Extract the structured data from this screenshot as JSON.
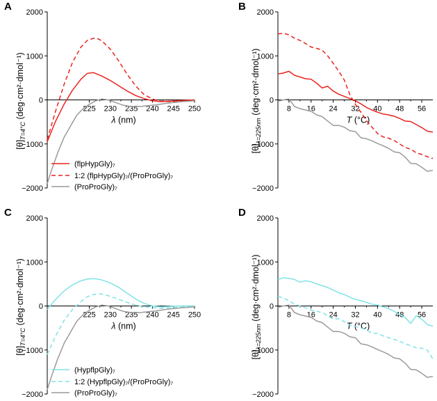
{
  "colors": {
    "red": "#e8231d",
    "cyan": "#7fe3e6",
    "gray": "#9a9a9a",
    "axis": "#000000"
  },
  "chart_data": [
    {
      "panel": "A",
      "type": "line",
      "xlabel_var": "λ",
      "xlabel_unit": " (nm)",
      "ylabel_base": "[θ]",
      "ylabel_sub": "T=4°C",
      "ylabel_unit": " (deg·cm²·dmol⁻¹)",
      "xlim": [
        215,
        250
      ],
      "ylim": [
        -2000,
        2000
      ],
      "xticks": [
        225,
        230,
        235,
        240,
        245,
        250
      ],
      "xtick_labels": [
        "225",
        "230",
        "235",
        "240",
        "245",
        "250"
      ],
      "yticks": [
        2000,
        1000,
        0,
        -1000,
        -2000
      ],
      "ytick_labels": [
        "2000",
        "1000",
        "0",
        "−1000",
        "−2000"
      ],
      "legend_position": "bottom-left",
      "series": [
        {
          "name": "(flpHypGly)₇",
          "color": "red",
          "dash": "solid",
          "x": [
            215,
            217,
            219,
            221,
            223,
            224.5,
            226,
            227,
            228,
            230,
            232,
            234,
            236,
            238,
            240,
            242,
            244,
            246,
            248,
            250
          ],
          "y": [
            -950,
            -480,
            -100,
            220,
            470,
            600,
            620,
            580,
            540,
            440,
            320,
            200,
            100,
            30,
            -20,
            -40,
            -30,
            -20,
            -10,
            0
          ]
        },
        {
          "name": "1:2 (flpHypGly)₇/(ProProGly)₇",
          "color": "red",
          "dash": "dashed",
          "x": [
            215,
            217,
            219,
            221,
            223,
            224.5,
            226,
            227,
            228,
            230,
            232,
            234,
            236,
            238,
            240,
            242,
            244,
            246,
            248,
            250
          ],
          "y": [
            -900,
            -250,
            350,
            850,
            1200,
            1350,
            1400,
            1390,
            1340,
            1150,
            880,
            580,
            320,
            120,
            20,
            -30,
            -40,
            -30,
            -20,
            0
          ]
        },
        {
          "name": "(ProProGly)₇",
          "color": "gray",
          "dash": "solid",
          "x": [
            215,
            216,
            217.5,
            219,
            220.5,
            222,
            223.5,
            225,
            226.5,
            228,
            229.5,
            231,
            233,
            235,
            237,
            239,
            241,
            243,
            245,
            247,
            250
          ],
          "y": [
            -1900,
            -1600,
            -1200,
            -850,
            -600,
            -350,
            -200,
            -100,
            -20,
            20,
            0,
            -50,
            -120,
            -150,
            -150,
            -130,
            -110,
            -80,
            -60,
            -40,
            -20
          ]
        }
      ]
    },
    {
      "panel": "B",
      "type": "line",
      "xlabel_var": "T",
      "xlabel_unit": " (°C)",
      "ylabel_base": "[θ]",
      "ylabel_sub": "λ=225nm",
      "ylabel_unit": " (deg·cm²·dmol⁻¹)",
      "xlim": [
        4,
        60
      ],
      "ylim": [
        -2000,
        2000
      ],
      "xticks": [
        8,
        16,
        24,
        32,
        40,
        48,
        56
      ],
      "xtick_labels": [
        "8",
        "16",
        "24",
        "32",
        "40",
        "48",
        "56"
      ],
      "yticks": [
        2000,
        1000,
        0,
        -1000,
        -2000
      ],
      "ytick_labels": [
        "2000",
        "1000",
        "0",
        "−1000",
        "−2000"
      ],
      "series": [
        {
          "name": "(flpHypGly)₇",
          "color": "red",
          "dash": "solid",
          "x": [
            4,
            6,
            8,
            10,
            12,
            14,
            16,
            18,
            20,
            22,
            24,
            26,
            28,
            30,
            32,
            34,
            36,
            38,
            40,
            42,
            44,
            46,
            48,
            50,
            52,
            54,
            56,
            58,
            60
          ],
          "y": [
            590,
            610,
            650,
            560,
            520,
            480,
            470,
            380,
            270,
            310,
            200,
            130,
            80,
            30,
            -20,
            -90,
            -170,
            -230,
            -280,
            -320,
            -340,
            -370,
            -420,
            -480,
            -490,
            -560,
            -630,
            -710,
            -730
          ]
        },
        {
          "name": "1:2 (flpHypGly)₇/(ProProGly)₇",
          "color": "red",
          "dash": "dashed",
          "x": [
            4,
            6,
            8,
            10,
            12,
            14,
            16,
            18,
            20,
            22,
            24,
            26,
            28,
            30,
            32,
            34,
            36,
            38,
            40,
            42,
            44,
            46,
            48,
            50,
            52,
            54,
            56,
            58,
            60
          ],
          "y": [
            1500,
            1510,
            1480,
            1400,
            1350,
            1280,
            1200,
            1170,
            1130,
            1000,
            830,
            650,
            450,
            120,
            -100,
            -280,
            -470,
            -620,
            -760,
            -840,
            -870,
            -920,
            -1000,
            -1080,
            -1120,
            -1200,
            -1240,
            -1290,
            -1330
          ]
        },
        {
          "name": "(ProProGly)₇",
          "color": "gray",
          "dash": "solid",
          "x": [
            4,
            6,
            8,
            10,
            12,
            14,
            16,
            18,
            20,
            22,
            24,
            26,
            28,
            30,
            32,
            34,
            36,
            38,
            40,
            42,
            44,
            46,
            48,
            50,
            52,
            54,
            56,
            58,
            60
          ],
          "y": [
            -30,
            0,
            20,
            -150,
            -200,
            -230,
            -260,
            -340,
            -380,
            -480,
            -580,
            -580,
            -620,
            -700,
            -720,
            -860,
            -880,
            -930,
            -990,
            -1040,
            -1100,
            -1180,
            -1200,
            -1300,
            -1440,
            -1450,
            -1530,
            -1620,
            -1600
          ]
        }
      ]
    },
    {
      "panel": "C",
      "type": "line",
      "xlabel_var": "λ",
      "xlabel_unit": " (nm)",
      "ylabel_base": "[θ]",
      "ylabel_sub": "T=4°C",
      "ylabel_unit": " (deg·cm²·dmol⁻¹)",
      "xlim": [
        215,
        250
      ],
      "ylim": [
        -2000,
        2000
      ],
      "xticks": [
        225,
        230,
        235,
        240,
        245,
        250
      ],
      "xtick_labels": [
        "225",
        "230",
        "235",
        "240",
        "245",
        "250"
      ],
      "yticks": [
        2000,
        1000,
        0,
        -1000,
        -2000
      ],
      "ytick_labels": [
        "2000",
        "1000",
        "0",
        "−1000",
        "−2000"
      ],
      "legend_position": "bottom-left",
      "series": [
        {
          "name": "(HypflpGly)₇",
          "color": "cyan",
          "dash": "solid",
          "x": [
            215,
            217,
            219,
            221,
            223,
            224.5,
            226,
            227,
            228,
            230,
            232,
            234,
            236,
            238,
            240,
            242,
            244,
            246,
            248,
            250
          ],
          "y": [
            -80,
            150,
            340,
            480,
            570,
            610,
            620,
            610,
            590,
            520,
            420,
            290,
            160,
            60,
            0,
            -20,
            -10,
            0,
            0,
            0
          ]
        },
        {
          "name": "1:2 (HypflpGly)₇/(ProProGly)₇",
          "color": "cyan",
          "dash": "dashed",
          "x": [
            215,
            217,
            219,
            221,
            223,
            224.5,
            226,
            227,
            228,
            230,
            232,
            234,
            236,
            238,
            240,
            242,
            244,
            246,
            248,
            250
          ],
          "y": [
            -1100,
            -680,
            -330,
            -80,
            100,
            210,
            260,
            280,
            270,
            220,
            150,
            80,
            20,
            -20,
            -40,
            -50,
            -40,
            -30,
            -20,
            -10
          ]
        },
        {
          "name": "(ProProGly)₇",
          "color": "gray",
          "dash": "solid",
          "x": [
            215,
            216,
            217.5,
            219,
            220.5,
            222,
            223.5,
            225,
            226.5,
            228,
            229.5,
            231,
            233,
            235,
            237,
            239,
            241,
            243,
            245,
            247,
            250
          ],
          "y": [
            -1900,
            -1600,
            -1200,
            -850,
            -600,
            -350,
            -200,
            -100,
            -20,
            20,
            0,
            -50,
            -120,
            -150,
            -150,
            -130,
            -110,
            -80,
            -60,
            -40,
            -20
          ]
        }
      ]
    },
    {
      "panel": "D",
      "type": "line",
      "xlabel_var": "T",
      "xlabel_unit": " (°C)",
      "ylabel_base": "[θ]",
      "ylabel_sub": "λ=225nm",
      "ylabel_unit": " (deg·cm²·dmol⁻¹)",
      "xlim": [
        4,
        60
      ],
      "ylim": [
        -2000,
        2000
      ],
      "xticks": [
        8,
        16,
        24,
        32,
        40,
        48,
        56
      ],
      "xtick_labels": [
        "8",
        "16",
        "24",
        "32",
        "40",
        "48",
        "56"
      ],
      "yticks": [
        2000,
        1000,
        0,
        -1000,
        -2000
      ],
      "ytick_labels": [
        "2000",
        "1000",
        "0",
        "−1000",
        "−2000"
      ],
      "series": [
        {
          "name": "(HypflpGly)₇",
          "color": "cyan",
          "dash": "solid",
          "x": [
            4,
            6,
            8,
            10,
            12,
            14,
            16,
            18,
            20,
            22,
            24,
            26,
            28,
            30,
            32,
            34,
            36,
            38,
            40,
            42,
            44,
            46,
            48,
            50,
            52,
            54,
            56,
            58,
            60
          ],
          "y": [
            600,
            640,
            630,
            600,
            540,
            570,
            550,
            500,
            460,
            420,
            360,
            300,
            260,
            200,
            150,
            120,
            80,
            40,
            20,
            -20,
            -60,
            -120,
            -200,
            -260,
            -400,
            -220,
            -300,
            -420,
            -460
          ]
        },
        {
          "name": "1:2 (HypflpGly)₇/(ProProGly)₇",
          "color": "cyan",
          "dash": "dashed",
          "x": [
            4,
            6,
            8,
            10,
            12,
            14,
            16,
            18,
            20,
            22,
            24,
            26,
            28,
            30,
            32,
            34,
            36,
            38,
            40,
            42,
            44,
            46,
            48,
            50,
            52,
            54,
            56,
            58,
            60
          ],
          "y": [
            220,
            180,
            120,
            40,
            0,
            -40,
            -100,
            -120,
            -150,
            -220,
            -300,
            -290,
            -360,
            -440,
            -470,
            -500,
            -540,
            -620,
            -620,
            -680,
            -720,
            -760,
            -800,
            -860,
            -900,
            -950,
            -960,
            -1000,
            -1200
          ]
        },
        {
          "name": "(ProProGly)₇",
          "color": "gray",
          "dash": "solid",
          "x": [
            4,
            6,
            8,
            10,
            12,
            14,
            16,
            18,
            20,
            22,
            24,
            26,
            28,
            30,
            32,
            34,
            36,
            38,
            40,
            42,
            44,
            46,
            48,
            50,
            52,
            54,
            56,
            58,
            60
          ],
          "y": [
            -30,
            0,
            20,
            -150,
            -200,
            -230,
            -260,
            -340,
            -380,
            -480,
            -580,
            -580,
            -620,
            -700,
            -720,
            -860,
            -880,
            -930,
            -990,
            -1040,
            -1100,
            -1180,
            -1200,
            -1300,
            -1440,
            -1450,
            -1530,
            -1620,
            -1600
          ]
        }
      ]
    }
  ]
}
